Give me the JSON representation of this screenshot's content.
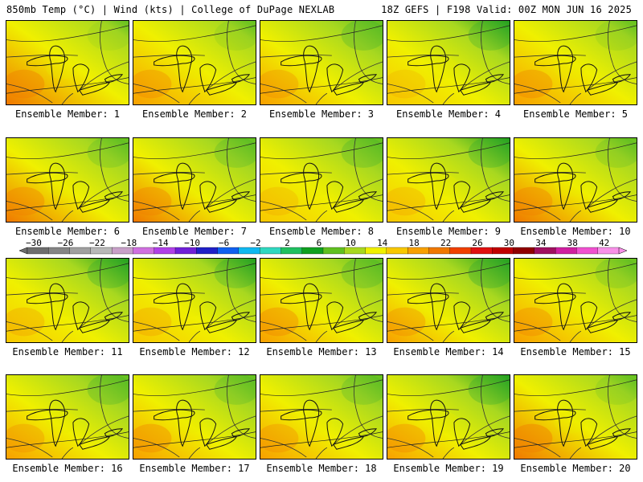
{
  "header": {
    "left": "850mb Temp (°C) | Wind (kts) | College of DuPage NEXLAB",
    "right": "18Z GEFS | F198 Valid: 00Z MON JUN 16 2025"
  },
  "members": [
    {
      "label": "Ensemble Member: 1",
      "warm": 0.78,
      "cool": 0.15
    },
    {
      "label": "Ensemble Member: 2",
      "warm": 0.62,
      "cool": 0.2
    },
    {
      "label": "Ensemble Member: 3",
      "warm": 0.55,
      "cool": 0.45
    },
    {
      "label": "Ensemble Member: 4",
      "warm": 0.3,
      "cool": 0.5
    },
    {
      "label": "Ensemble Member: 5",
      "warm": 0.68,
      "cool": 0.2
    },
    {
      "label": "Ensemble Member: 6",
      "warm": 0.75,
      "cool": 0.35
    },
    {
      "label": "Ensemble Member: 7",
      "warm": 0.72,
      "cool": 0.4
    },
    {
      "label": "Ensemble Member: 8",
      "warm": 0.35,
      "cool": 0.45
    },
    {
      "label": "Ensemble Member: 9",
      "warm": 0.4,
      "cool": 0.55
    },
    {
      "label": "Ensemble Member: 10",
      "warm": 0.72,
      "cool": 0.3
    },
    {
      "label": "Ensemble Member: 11",
      "warm": 0.45,
      "cool": 0.55
    },
    {
      "label": "Ensemble Member: 12",
      "warm": 0.45,
      "cool": 0.5
    },
    {
      "label": "Ensemble Member: 13",
      "warm": 0.7,
      "cool": 0.45
    },
    {
      "label": "Ensemble Member: 14",
      "warm": 0.6,
      "cool": 0.6
    },
    {
      "label": "Ensemble Member: 15",
      "warm": 0.65,
      "cool": 0.3
    },
    {
      "label": "Ensemble Member: 16",
      "warm": 0.55,
      "cool": 0.45
    },
    {
      "label": "Ensemble Member: 17",
      "warm": 0.7,
      "cool": 0.4
    },
    {
      "label": "Ensemble Member: 18",
      "warm": 0.58,
      "cool": 0.4
    },
    {
      "label": "Ensemble Member: 19",
      "warm": 0.65,
      "cool": 0.55
    },
    {
      "label": "Ensemble Member: 20",
      "warm": 0.85,
      "cool": 0.25
    }
  ],
  "colorbar": {
    "ticks": [
      -30,
      -26,
      -22,
      -18,
      -14,
      -10,
      -6,
      -2,
      2,
      6,
      10,
      14,
      18,
      22,
      26,
      30,
      34,
      38,
      42
    ],
    "colors": [
      "#6e6e6e",
      "#858585",
      "#a0a0a0",
      "#b8b8b8",
      "#c8a0c8",
      "#d070e0",
      "#b040e8",
      "#7020d8",
      "#2020c8",
      "#1060f0",
      "#10b8f0",
      "#30d8c0",
      "#20c060",
      "#10a020",
      "#60c020",
      "#a8d820",
      "#f0f000",
      "#f8c800",
      "#f8a000",
      "#f07800",
      "#f04000",
      "#e01010",
      "#c00000",
      "#900000",
      "#a01060",
      "#d020a0",
      "#f050d0",
      "#f890e8"
    ]
  }
}
